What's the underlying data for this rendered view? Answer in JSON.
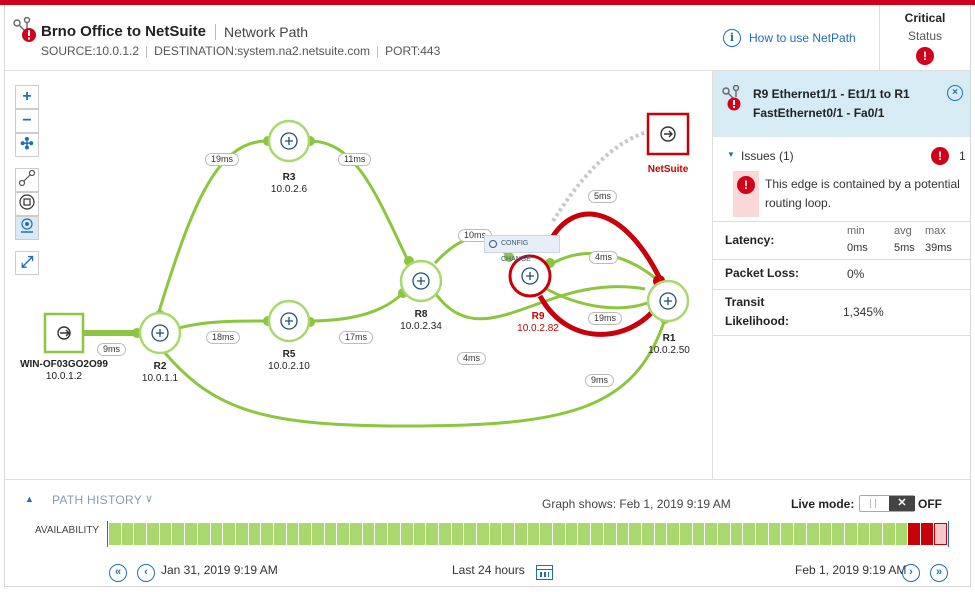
{
  "header": {
    "title": "Brno Office to NetSuite",
    "subtitle": "Network Path",
    "source": "SOURCE:10.0.1.2",
    "destination": "DESTINATION:system.na2.netsuite.com",
    "port": "PORT:443",
    "how_to": "How to use NetPath",
    "status_value": "Critical",
    "status_label": "Status"
  },
  "controls": {
    "zoom_in": "+",
    "zoom_out": "−",
    "fit": "✣",
    "expand": "⤢"
  },
  "nodes": {
    "source": {
      "name": "WIN-OF03GO2O99",
      "ip": "10.0.1.2"
    },
    "r2": {
      "name": "R2",
      "ip": "10.0.1.1"
    },
    "r3": {
      "name": "R3",
      "ip": "10.0.2.6"
    },
    "r5": {
      "name": "R5",
      "ip": "10.0.2.10"
    },
    "r8": {
      "name": "R8",
      "ip": "10.0.2.34"
    },
    "r9": {
      "name": "R9",
      "ip": "10.0.2.82"
    },
    "r1": {
      "name": "R1",
      "ip": "10.0.2.50"
    },
    "dest": {
      "name": "NetSuite"
    }
  },
  "latencies": {
    "src_r2": "9ms",
    "r2_r3": "19ms",
    "r3_r8": "11ms",
    "r2_r5": "18ms",
    "r5_r8": "17ms",
    "r8_r9": "10ms",
    "r8_r1": "4ms",
    "r9_r1_top": "4ms",
    "r9_r1_mid": "19ms",
    "r9_r1_outer": "5ms",
    "r2_r1": "9ms"
  },
  "config_change": "CONFIG CHANGE",
  "panel": {
    "title_line1": "R9 Ethernet1/1 - Et1/1 to R1",
    "title_line2": "FastEthernet0/1 - Fa0/1",
    "close": "×",
    "issues_label": "Issues (1)",
    "issues_count": "1",
    "issue_text": "This edge is contained by a potential routing loop.",
    "latency_label": "Latency:",
    "lat_min_h": "min",
    "lat_avg_h": "avg",
    "lat_max_h": "max",
    "lat_min": "0ms",
    "lat_avg": "5ms",
    "lat_max": "39ms",
    "loss_label": "Packet Loss:",
    "loss_value": "0%",
    "transit_label_1": "Transit",
    "transit_label_2": "Likelihood:",
    "transit_value": "1,345%"
  },
  "history": {
    "label": "PATH HISTORY",
    "graph_shows": "Graph shows: Feb 1, 2019 9:19 AM",
    "live_mode": "Live mode:",
    "toggle_x": "✕",
    "live_state": "OFF",
    "availability_label": "AVAILABILITY",
    "availability": [
      "ok",
      "ok",
      "ok",
      "ok",
      "ok",
      "ok",
      "ok",
      "ok",
      "ok",
      "ok",
      "ok",
      "ok",
      "ok",
      "ok",
      "ok",
      "ok",
      "ok",
      "ok",
      "ok",
      "ok",
      "ok",
      "ok",
      "ok",
      "ok",
      "ok",
      "ok",
      "ok",
      "ok",
      "ok",
      "ok",
      "ok",
      "ok",
      "ok",
      "ok",
      "ok",
      "ok",
      "ok",
      "ok",
      "ok",
      "ok",
      "ok",
      "ok",
      "ok",
      "ok",
      "ok",
      "ok",
      "ok",
      "ok",
      "ok",
      "ok",
      "ok",
      "ok",
      "ok",
      "ok",
      "ok",
      "ok",
      "ok",
      "ok",
      "ok",
      "ok",
      "ok",
      "ok",
      "ok",
      "crit",
      "crit",
      "warn"
    ],
    "start_time": "Jan 31, 2019 9:19 AM",
    "range": "Last 24 hours",
    "end_time": "Feb 1, 2019 9:19 AM"
  },
  "colors": {
    "good": "#8cc63f",
    "good_light": "#a8d86e",
    "critical": "#c8000a",
    "accent": "#1f6fb5"
  }
}
